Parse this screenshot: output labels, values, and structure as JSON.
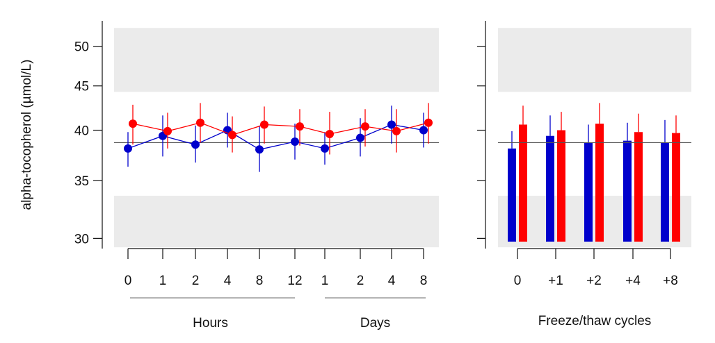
{
  "colors": {
    "series_a": "#0000cc",
    "series_b": "#ff0000",
    "band": "#ebebeb",
    "reference": "#555555"
  },
  "chart_data": [
    {
      "type": "line",
      "panel": "stability",
      "ylabel": "alpha-tocopherol (µmol/L)",
      "y_scale": "log",
      "ylim": [
        29.2,
        53.5
      ],
      "yticks": [
        30,
        35,
        40,
        45,
        50
      ],
      "categories": [
        "0",
        "1",
        "2",
        "4",
        "8",
        "12",
        "1",
        "2",
        "4",
        "8"
      ],
      "groups": [
        {
          "label": "Hours",
          "from": 0,
          "to": 5
        },
        {
          "label": "Days",
          "from": 6,
          "to": 9
        }
      ],
      "reference": 38.7,
      "bands": [
        [
          44.3,
          52.5
        ],
        [
          29.3,
          33.6
        ]
      ],
      "series": [
        {
          "color": "#0000cc",
          "values": [
            38.1,
            39.4,
            38.5,
            40.0,
            38.0,
            38.8,
            38.1,
            39.2,
            40.6,
            40.0
          ],
          "lower": [
            36.3,
            37.3,
            36.7,
            38.2,
            35.8,
            37.0,
            36.5,
            37.3,
            38.6,
            38.2
          ],
          "upper": [
            39.8,
            41.6,
            40.5,
            41.9,
            40.5,
            40.7,
            39.8,
            41.3,
            42.7,
            41.9
          ]
        },
        {
          "color": "#ff0000",
          "values": [
            40.7,
            39.9,
            40.8,
            39.5,
            40.6,
            40.4,
            39.6,
            40.4,
            39.9,
            40.8
          ],
          "lower": [
            38.5,
            38.1,
            38.7,
            37.7,
            38.6,
            38.4,
            37.5,
            38.3,
            37.7,
            38.6
          ],
          "upper": [
            42.8,
            41.9,
            43.0,
            41.5,
            42.6,
            42.3,
            42.0,
            42.3,
            42.3,
            43.0
          ]
        }
      ]
    },
    {
      "type": "bar",
      "panel": "freeze-thaw",
      "xlabel": "Freeze/thaw cycles",
      "y_scale": "log",
      "ylim": [
        29.2,
        53.5
      ],
      "yticks": [
        30,
        35,
        40,
        45,
        50
      ],
      "categories": [
        "0",
        "+1",
        "+2",
        "+4",
        "+8"
      ],
      "reference": 38.7,
      "bands": [
        [
          44.3,
          52.5
        ],
        [
          29.3,
          33.6
        ]
      ],
      "series": [
        {
          "color": "#0000cc",
          "values": [
            38.1,
            39.4,
            38.7,
            38.9,
            38.7
          ],
          "upper": [
            39.9,
            41.6,
            40.6,
            40.8,
            41.1
          ]
        },
        {
          "color": "#ff0000",
          "values": [
            40.6,
            40.0,
            40.7,
            39.8,
            39.7
          ],
          "upper": [
            42.7,
            42.0,
            43.0,
            41.8,
            41.6
          ]
        }
      ]
    }
  ]
}
